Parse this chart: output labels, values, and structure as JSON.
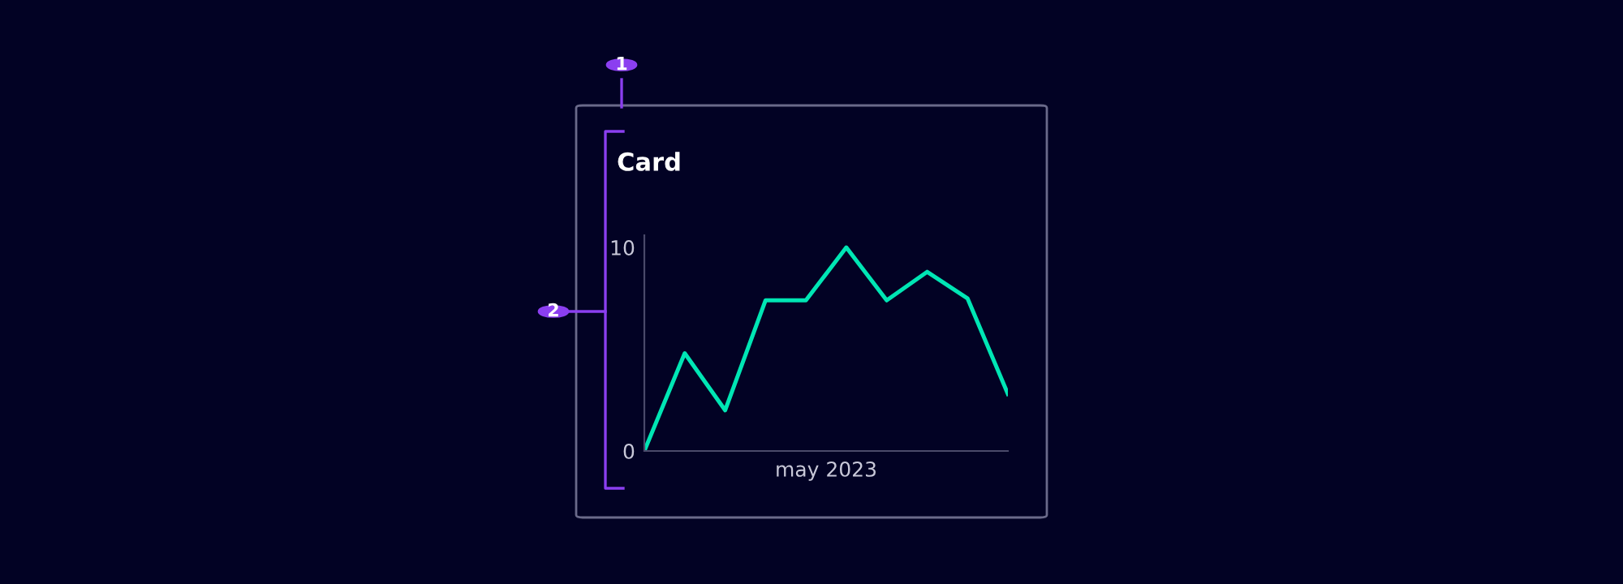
{
  "chart_data": {
    "type": "line",
    "title": "Card",
    "xlabel": "may 2023",
    "categories": [
      null,
      null,
      null,
      null,
      null,
      null,
      null,
      null,
      null,
      null
    ],
    "series": [
      {
        "color": "#00e6b4",
        "values": [
          0,
          4.8,
          2,
          7.4,
          7.4,
          10,
          7.4,
          8.8,
          7.5,
          2.8
        ]
      }
    ],
    "ylim": [
      0,
      10.6
    ],
    "yticks": [
      0,
      10
    ],
    "grid": false,
    "legend": false,
    "marker": "none",
    "line_style": "solid",
    "annotations": [
      "1",
      "2"
    ]
  }
}
